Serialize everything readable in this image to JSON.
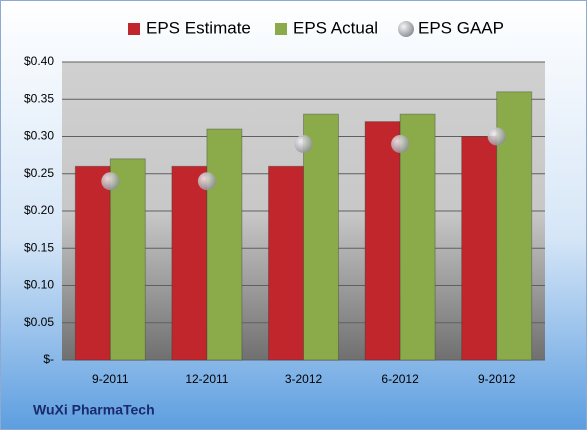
{
  "chart_data": {
    "type": "bar",
    "categories": [
      "9-2011",
      "12-2011",
      "3-2012",
      "6-2012",
      "9-2012"
    ],
    "series": [
      {
        "name": "EPS Estimate",
        "color": "#c0262c",
        "values": [
          0.26,
          0.26,
          0.26,
          0.32,
          0.3
        ]
      },
      {
        "name": "EPS Actual",
        "color": "#8bab4a",
        "values": [
          0.27,
          0.31,
          0.33,
          0.33,
          0.36
        ]
      },
      {
        "name": "EPS GAAP",
        "color": "#a8aab0",
        "style": "marker",
        "values": [
          0.24,
          0.24,
          0.29,
          0.29,
          0.3
        ]
      }
    ],
    "ylim": [
      0,
      0.4
    ],
    "yticks": [
      {
        "value": 0,
        "label": "$-"
      },
      {
        "value": 0.05,
        "label": "$0.05"
      },
      {
        "value": 0.1,
        "label": "$0.10"
      },
      {
        "value": 0.15,
        "label": "$0.15"
      },
      {
        "value": 0.2,
        "label": "$0.20"
      },
      {
        "value": 0.25,
        "label": "$0.25"
      },
      {
        "value": 0.3,
        "label": "$0.30"
      },
      {
        "value": 0.35,
        "label": "$0.35"
      },
      {
        "value": 0.4,
        "label": "$0.40"
      }
    ],
    "grid": true,
    "legend": "top",
    "source": "WuXi PharmaTech"
  }
}
